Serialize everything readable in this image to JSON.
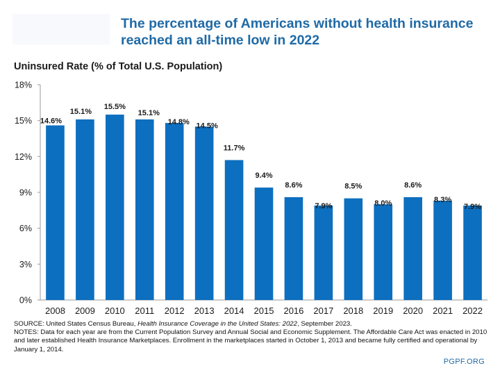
{
  "header": {
    "title_line1": "The percentage of Americans without health insurance",
    "title_line2": "reached an all-time low in 2022"
  },
  "chart_data": {
    "type": "bar",
    "ylabel": "Uninsured Rate (% of Total U.S. Population)",
    "xlabel": "",
    "ylim": [
      0,
      18
    ],
    "yticks": [
      0,
      3,
      6,
      9,
      12,
      15,
      18
    ],
    "ytick_labels": [
      "0%",
      "3%",
      "6%",
      "9%",
      "12%",
      "15%",
      "18%"
    ],
    "categories": [
      "2008",
      "2009",
      "2010",
      "2011",
      "2012",
      "2013",
      "2014",
      "2015",
      "2016",
      "2017",
      "2018",
      "2019",
      "2020",
      "2021",
      "2022"
    ],
    "values": [
      14.6,
      15.1,
      15.5,
      15.1,
      14.8,
      14.5,
      11.7,
      9.4,
      8.6,
      7.9,
      8.5,
      8.0,
      8.6,
      8.3,
      7.9
    ],
    "value_labels": [
      "14.6%",
      "15.1%",
      "15.5%",
      "15.1%",
      "14.8%",
      "14.5%",
      "11.7%",
      "9.4%",
      "8.6%",
      "7.9%",
      "8.5%",
      "8.0%",
      "8.6%",
      "8.3%",
      "7.9%"
    ],
    "bar_color": "#0d6fbf",
    "grid": false
  },
  "footnote": {
    "source_prefix": "SOURCE: United States Census Bureau, ",
    "source_title": "Health Insurance Coverage in the United States: 2022",
    "source_suffix": ", September 2023.",
    "notes": "NOTES: Data for each year are from the Current Population Survey and Annual Social and Economic Supplement. The Affordable Care Act was enacted in 2010 and later established Health Insurance Marketplaces. Enrollment in the marketplaces started in October 1, 2013 and became fully certified and operational by January 1, 2014."
  },
  "brand": "PGPF.ORG",
  "colors": {
    "title": "#1f6aa6",
    "bar": "#0d6fbf"
  }
}
